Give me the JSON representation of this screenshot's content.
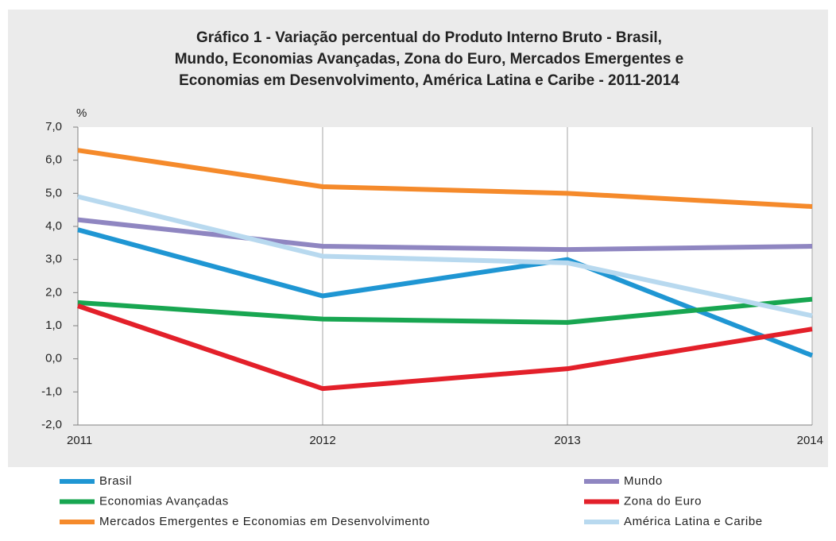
{
  "chart_data": {
    "type": "line",
    "title": [
      "Gráfico 1 - Variação percentual do Produto Interno Bruto - Brasil,",
      "Mundo, Economias Avançadas, Zona do Euro, Mercados Emergentes e",
      "Economias em Desenvolvimento, América Latina e Caribe - 2011-2014"
    ],
    "ylabel": "%",
    "x": [
      2011,
      2012,
      2013,
      2014
    ],
    "xlim": [
      2011,
      2014
    ],
    "xticks": [
      2011,
      2012,
      2013,
      2014
    ],
    "ylim": [
      -2,
      7
    ],
    "yticks": [
      {
        "value": -2,
        "label": "-2,0"
      },
      {
        "value": -1,
        "label": "-1,0"
      },
      {
        "value": 0,
        "label": "0,0"
      },
      {
        "value": 1,
        "label": "1,0"
      },
      {
        "value": 2,
        "label": "2,0"
      },
      {
        "value": 3,
        "label": "3,0"
      },
      {
        "value": 4,
        "label": "4,0"
      },
      {
        "value": 5,
        "label": "5,0"
      },
      {
        "value": 6,
        "label": "6,0"
      },
      {
        "value": 7,
        "label": "7,0"
      }
    ],
    "grid": "x",
    "legend": "bottom",
    "series": [
      {
        "name": "Brasil",
        "color": "#1f96d3",
        "values": [
          3.9,
          1.9,
          3.0,
          0.1
        ]
      },
      {
        "name": "Mundo",
        "color": "#8f86c1",
        "values": [
          4.2,
          3.4,
          3.3,
          3.4
        ]
      },
      {
        "name": "Economias Avançadas",
        "color": "#18a651",
        "values": [
          1.7,
          1.2,
          1.1,
          1.8
        ]
      },
      {
        "name": "Zona do Euro",
        "color": "#e3202a",
        "values": [
          1.6,
          -0.9,
          -0.3,
          0.9
        ]
      },
      {
        "name": "Mercados Emergentes e Economias em Desenvolvimento",
        "color": "#f58a2b",
        "values": [
          6.3,
          5.2,
          5.0,
          4.6
        ]
      },
      {
        "name": "América Latina e Caribe",
        "color": "#b8d9ef",
        "values": [
          4.9,
          3.1,
          2.9,
          1.3
        ]
      }
    ]
  }
}
